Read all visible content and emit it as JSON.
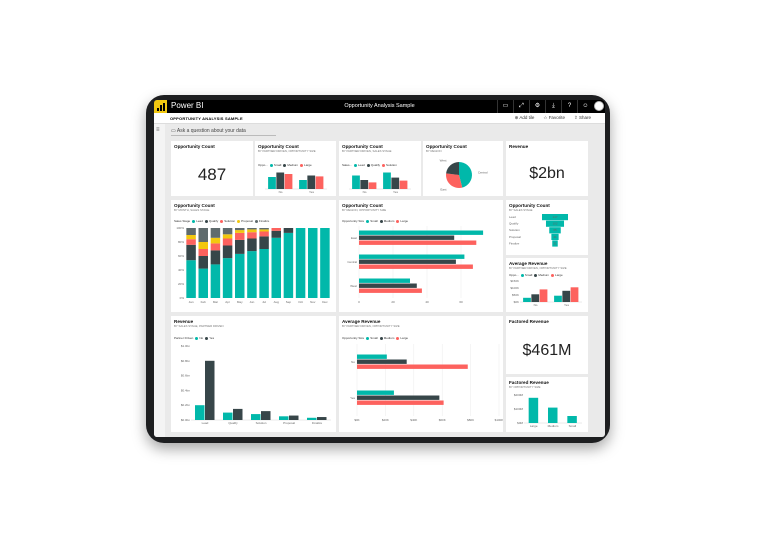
{
  "app": {
    "name": "Power BI",
    "report_title": "Opportunity Analysis Sample",
    "page": "OPPORTUNITY ANALYSIS SAMPLE",
    "ask": "Ask a question about your data",
    "actions": {
      "add_tile": "Add tile",
      "favorite": "Favorite",
      "share": "Share"
    }
  },
  "colors": {
    "teal": "#01b8aa",
    "dark": "#374649",
    "red": "#fd625e",
    "yellow": "#f2c80f",
    "gray": "#5f6b6d"
  },
  "tiles": {
    "oc1": {
      "title": "Opportunity Count",
      "value": "487"
    },
    "oc2": {
      "title": "Opportunity Count",
      "subtitle": "BY PARTNER DRIVEN, OPPORTUNITY SIZE"
    },
    "oc3": {
      "title": "Opportunity Count",
      "subtitle": "BY PARTNER DRIVEN, SALES STAGE"
    },
    "oc4": {
      "title": "Opportunity Count",
      "subtitle": "BY REGION"
    },
    "rev1": {
      "title": "Revenue",
      "value": "$2bn"
    },
    "oc5": {
      "title": "Opportunity Count",
      "subtitle": "BY MONTH, SALES STAGE"
    },
    "oc6": {
      "title": "Opportunity Count",
      "subtitle": "BY REGION, OPPORTUNITY SIZE"
    },
    "oc7": {
      "title": "Opportunity Count",
      "subtitle": "BY SALES STAGE"
    },
    "avgrev1": {
      "title": "Average Revenue",
      "subtitle": "BY PARTNER DRIVEN, OPPORTUNITY SIZE"
    },
    "rev2": {
      "title": "Revenue",
      "subtitle": "BY SALES STAGE, PARTNER DRIVEN"
    },
    "avgrev2": {
      "title": "Average Revenue",
      "subtitle": "BY PARTNER DRIVEN, OPPORTUNITY SIZE"
    },
    "frev1": {
      "title": "Factored Revenue",
      "value": "$461M"
    },
    "frev2": {
      "title": "Factored Revenue",
      "subtitle": "BY OPPORTUNITY SIZE"
    }
  },
  "legends": {
    "size": {
      "label": "Opportunity Size",
      "items": [
        "Small",
        "Medium",
        "Large"
      ]
    },
    "size_short": {
      "label": "Oppo...",
      "items": [
        "Small",
        "Medium",
        "Large"
      ]
    },
    "stage": {
      "label": "Sales Stage",
      "items": [
        "Lead",
        "Qualify",
        "Solution",
        "Proposal",
        "Finalize"
      ]
    },
    "stage_short": {
      "label": "Sales...",
      "items": [
        "Lead",
        "Qualify",
        "Solution"
      ]
    },
    "partner": {
      "label": "Partner Driven",
      "items": [
        "No",
        "Yes"
      ]
    }
  },
  "chart_data": [
    {
      "id": "region-pie",
      "type": "pie",
      "categories": [
        "Central",
        "East",
        "West"
      ],
      "values": [
        46,
        31,
        23
      ]
    },
    {
      "id": "month-stage",
      "type": "bar",
      "stacked_percent": true,
      "categories": [
        "Jan",
        "Feb",
        "Mar",
        "Apr",
        "May",
        "Jun",
        "Jul",
        "Aug",
        "Sep",
        "Oct",
        "Nov",
        "Dec"
      ],
      "yticks": [
        "100%",
        "80%",
        "60%",
        "40%",
        "20%",
        "0%"
      ],
      "series": [
        {
          "name": "Lead",
          "values": [
            54,
            42,
            48,
            57,
            63,
            67,
            70,
            86,
            93,
            100,
            100,
            100
          ]
        },
        {
          "name": "Qualify",
          "values": [
            22,
            18,
            20,
            18,
            20,
            18,
            18,
            10,
            7,
            0,
            0,
            0
          ]
        },
        {
          "name": "Solution",
          "values": [
            8,
            10,
            10,
            10,
            10,
            9,
            7,
            4,
            0,
            0,
            0,
            0
          ]
        },
        {
          "name": "Proposal",
          "values": [
            6,
            10,
            8,
            6,
            4,
            4,
            3,
            0,
            0,
            0,
            0,
            0
          ]
        },
        {
          "name": "Finalize",
          "values": [
            10,
            20,
            14,
            9,
            3,
            2,
            2,
            0,
            0,
            0,
            0,
            0
          ]
        }
      ]
    },
    {
      "id": "region-size",
      "type": "bar",
      "orientation": "horizontal",
      "categories": [
        "East",
        "Central",
        "West"
      ],
      "xticks": [
        "0",
        "20",
        "40",
        "60"
      ],
      "xlim": [
        0,
        80
      ],
      "series": [
        {
          "name": "Small",
          "values": [
            73,
            62,
            30
          ]
        },
        {
          "name": "Medium",
          "values": [
            56,
            57,
            34
          ]
        },
        {
          "name": "Large",
          "values": [
            69,
            67,
            37
          ]
        }
      ]
    },
    {
      "id": "stage-funnel",
      "type": "bar",
      "orientation": "funnel",
      "categories": [
        "Lead",
        "Qualify",
        "Solution",
        "Proposal",
        "Finalize"
      ],
      "values": [
        147,
        102,
        65,
        41,
        31
      ],
      "labels": [
        "147",
        "102",
        "65",
        "41",
        "31"
      ]
    },
    {
      "id": "avg-rev-small",
      "type": "bar",
      "categories": [
        "No",
        "Yes"
      ],
      "yticks": [
        "$150K",
        "$100K",
        "$50K",
        "$0K"
      ],
      "series": [
        {
          "name": "Small",
          "values": [
            30,
            45
          ]
        },
        {
          "name": "Medium",
          "values": [
            55,
            80
          ]
        },
        {
          "name": "Large",
          "values": [
            90,
            105
          ]
        }
      ]
    },
    {
      "id": "rev-stage-partner",
      "type": "bar",
      "categories": [
        "Lead",
        "Qualify",
        "Solution",
        "Proposal",
        "Finalize"
      ],
      "yticks": [
        "$1.0bn",
        "$0.8bn",
        "$0.6bn",
        "$0.4bn",
        "$0.2bn",
        "$0.0bn"
      ],
      "series": [
        {
          "name": "No",
          "values": [
            0.2,
            0.1,
            0.08,
            0.05,
            0.03
          ]
        },
        {
          "name": "Yes",
          "values": [
            0.8,
            0.15,
            0.12,
            0.06,
            0.04
          ]
        }
      ]
    },
    {
      "id": "avg-rev-size",
      "type": "bar",
      "orientation": "horizontal",
      "categories": [
        "No",
        "Yes"
      ],
      "xticks": [
        "$0K",
        "$20K",
        "$40K",
        "$60K",
        "$80K",
        "$100K"
      ],
      "xlim": [
        0,
        100
      ],
      "series": [
        {
          "name": "Small",
          "values": [
            21,
            26
          ]
        },
        {
          "name": "Medium",
          "values": [
            35,
            58
          ]
        },
        {
          "name": "Large",
          "values": [
            78,
            61
          ]
        }
      ]
    },
    {
      "id": "frev-size",
      "type": "bar",
      "categories": [
        "Large",
        "Medium",
        "Small"
      ],
      "yticks": [
        "$200M",
        "$100M",
        "$0M"
      ],
      "values": [
        180,
        110,
        50
      ]
    },
    {
      "id": "oc-partner-size",
      "type": "bar",
      "categories": [
        "No",
        "Yes"
      ],
      "series": [
        {
          "name": "Small",
          "values": [
            40,
            30
          ]
        },
        {
          "name": "Medium",
          "values": [
            55,
            45
          ]
        },
        {
          "name": "Large",
          "values": [
            50,
            42
          ]
        }
      ]
    },
    {
      "id": "oc-partner-stage",
      "type": "bar",
      "categories": [
        "No",
        "Yes"
      ],
      "series": [
        {
          "name": "Lead",
          "values": [
            45,
            55
          ]
        },
        {
          "name": "Qualify",
          "values": [
            30,
            38
          ]
        },
        {
          "name": "Solution",
          "values": [
            22,
            28
          ]
        }
      ]
    }
  ]
}
